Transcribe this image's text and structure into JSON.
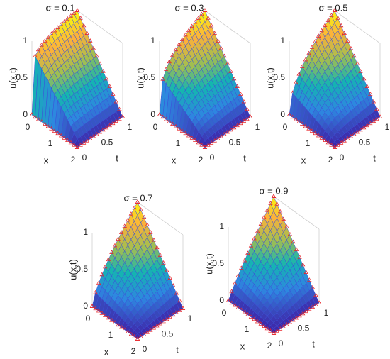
{
  "panels": [
    {
      "title": "σ = 0.1",
      "zlabel": "u(x,t)",
      "xlabel": "x",
      "tlabel": "t",
      "zticks": [
        0,
        0.5,
        1
      ],
      "xticks": [
        0,
        1,
        2
      ],
      "tticks": [
        0,
        0.5,
        1
      ]
    },
    {
      "title": "σ = 0.3",
      "zlabel": "u(x,t)",
      "xlabel": "x",
      "tlabel": "t",
      "zticks": [
        0,
        0.5,
        1
      ],
      "xticks": [
        0,
        1,
        2
      ],
      "tticks": [
        0,
        0.5,
        1
      ]
    },
    {
      "title": "σ = 0.5",
      "zlabel": "u(x,t)",
      "xlabel": "x",
      "tlabel": "t",
      "zticks": [
        0,
        0.5,
        1
      ],
      "xticks": [
        0,
        1,
        2
      ],
      "tticks": [
        0,
        0.5,
        1
      ]
    },
    {
      "title": "σ = 0.7",
      "zlabel": "u(x,t)",
      "xlabel": "x",
      "tlabel": "t",
      "zticks": [
        0,
        0.5,
        1
      ],
      "xticks": [
        0,
        1,
        2
      ],
      "tticks": [
        0,
        0.5,
        1
      ]
    },
    {
      "title": "σ = 0.9",
      "zlabel": "u(x,t)",
      "xlabel": "x",
      "tlabel": "t",
      "zticks": [
        0,
        0.5,
        1
      ],
      "xticks": [
        0,
        1,
        2
      ],
      "tticks": [
        0,
        0.5,
        1
      ]
    }
  ]
}
